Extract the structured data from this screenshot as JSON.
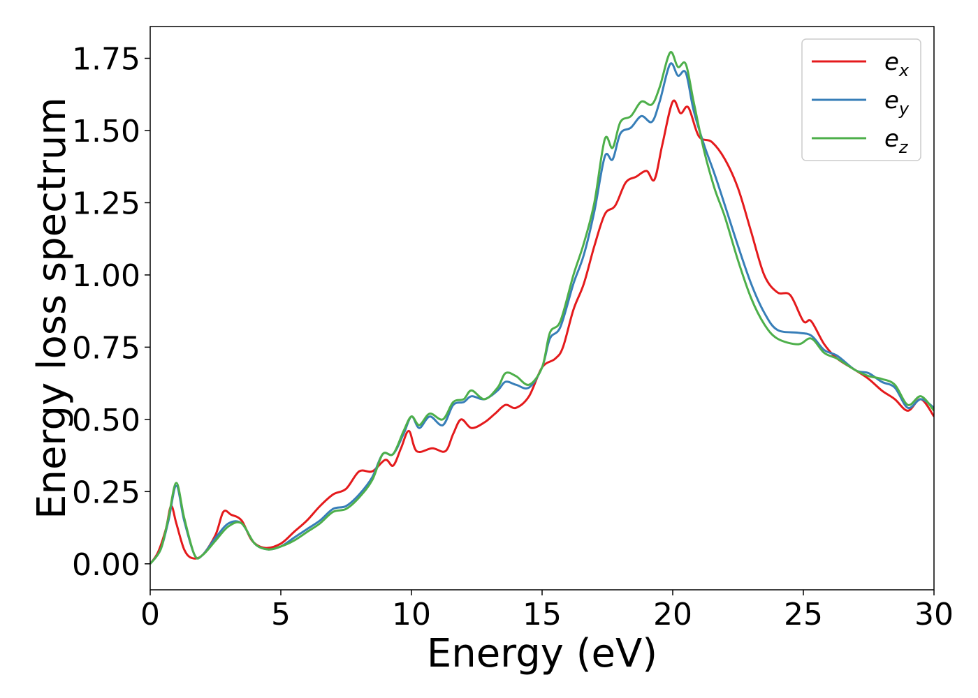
{
  "chart_data": {
    "type": "line",
    "xlabel": "Energy (eV)",
    "ylabel": "Energy loss spectrum",
    "xlim": [
      0,
      30
    ],
    "ylim": [
      -0.09,
      1.86
    ],
    "xticks": [
      0,
      5,
      10,
      15,
      20,
      25,
      30
    ],
    "xtick_labels": [
      "0",
      "5",
      "10",
      "15",
      "20",
      "25",
      "30"
    ],
    "yticks": [
      0,
      0.25,
      0.5,
      0.75,
      1.0,
      1.25,
      1.5,
      1.75
    ],
    "ytick_labels": [
      "0.00",
      "0.25",
      "0.50",
      "0.75",
      "1.00",
      "1.25",
      "1.50",
      "1.75"
    ],
    "grid": false,
    "legend_position": "top-right",
    "series": [
      {
        "name": "e_x",
        "base": "e",
        "sub": "x",
        "color": "#e41a1c",
        "points": [
          [
            0,
            0
          ],
          [
            0.3,
            0.04
          ],
          [
            0.6,
            0.12
          ],
          [
            0.8,
            0.2
          ],
          [
            1.0,
            0.14
          ],
          [
            1.3,
            0.05
          ],
          [
            1.6,
            0.02
          ],
          [
            2.0,
            0.03
          ],
          [
            2.5,
            0.1
          ],
          [
            2.8,
            0.18
          ],
          [
            3.1,
            0.17
          ],
          [
            3.5,
            0.15
          ],
          [
            3.9,
            0.08
          ],
          [
            4.4,
            0.055
          ],
          [
            5.0,
            0.07
          ],
          [
            5.5,
            0.11
          ],
          [
            6.0,
            0.15
          ],
          [
            6.5,
            0.2
          ],
          [
            7.0,
            0.24
          ],
          [
            7.5,
            0.26
          ],
          [
            8.0,
            0.32
          ],
          [
            8.5,
            0.32
          ],
          [
            9.0,
            0.36
          ],
          [
            9.3,
            0.34
          ],
          [
            9.6,
            0.4
          ],
          [
            9.9,
            0.46
          ],
          [
            10.2,
            0.39
          ],
          [
            10.8,
            0.4
          ],
          [
            11.3,
            0.39
          ],
          [
            11.6,
            0.45
          ],
          [
            11.9,
            0.5
          ],
          [
            12.3,
            0.47
          ],
          [
            12.8,
            0.49
          ],
          [
            13.2,
            0.52
          ],
          [
            13.6,
            0.55
          ],
          [
            14.0,
            0.54
          ],
          [
            14.5,
            0.58
          ],
          [
            15.0,
            0.68
          ],
          [
            15.5,
            0.71
          ],
          [
            15.8,
            0.75
          ],
          [
            16.2,
            0.88
          ],
          [
            16.6,
            0.97
          ],
          [
            17.0,
            1.1
          ],
          [
            17.4,
            1.21
          ],
          [
            17.8,
            1.24
          ],
          [
            18.2,
            1.32
          ],
          [
            18.6,
            1.34
          ],
          [
            19.0,
            1.36
          ],
          [
            19.3,
            1.33
          ],
          [
            19.6,
            1.45
          ],
          [
            20.0,
            1.6
          ],
          [
            20.3,
            1.56
          ],
          [
            20.6,
            1.58
          ],
          [
            21.0,
            1.48
          ],
          [
            21.5,
            1.46
          ],
          [
            22.0,
            1.4
          ],
          [
            22.5,
            1.3
          ],
          [
            23.0,
            1.15
          ],
          [
            23.5,
            1.0
          ],
          [
            24.0,
            0.94
          ],
          [
            24.5,
            0.93
          ],
          [
            25.0,
            0.84
          ],
          [
            25.3,
            0.84
          ],
          [
            25.8,
            0.76
          ],
          [
            26.3,
            0.71
          ],
          [
            27.0,
            0.67
          ],
          [
            27.5,
            0.64
          ],
          [
            28.0,
            0.6
          ],
          [
            28.5,
            0.57
          ],
          [
            29.0,
            0.53
          ],
          [
            29.5,
            0.57
          ],
          [
            30.0,
            0.51
          ]
        ]
      },
      {
        "name": "e_y",
        "base": "e",
        "sub": "y",
        "color": "#377eb8",
        "points": [
          [
            0,
            0
          ],
          [
            0.4,
            0.05
          ],
          [
            0.7,
            0.15
          ],
          [
            1.0,
            0.27
          ],
          [
            1.3,
            0.15
          ],
          [
            1.7,
            0.03
          ],
          [
            2.0,
            0.03
          ],
          [
            2.5,
            0.09
          ],
          [
            3.0,
            0.14
          ],
          [
            3.5,
            0.14
          ],
          [
            4.0,
            0.07
          ],
          [
            4.5,
            0.05
          ],
          [
            5.0,
            0.06
          ],
          [
            5.5,
            0.09
          ],
          [
            6.0,
            0.12
          ],
          [
            6.5,
            0.15
          ],
          [
            7.0,
            0.19
          ],
          [
            7.5,
            0.2
          ],
          [
            8.0,
            0.24
          ],
          [
            8.5,
            0.3
          ],
          [
            8.9,
            0.38
          ],
          [
            9.3,
            0.38
          ],
          [
            9.7,
            0.45
          ],
          [
            10.0,
            0.51
          ],
          [
            10.3,
            0.47
          ],
          [
            10.7,
            0.51
          ],
          [
            11.2,
            0.48
          ],
          [
            11.6,
            0.55
          ],
          [
            12.0,
            0.56
          ],
          [
            12.3,
            0.58
          ],
          [
            12.8,
            0.57
          ],
          [
            13.3,
            0.6
          ],
          [
            13.6,
            0.63
          ],
          [
            14.0,
            0.62
          ],
          [
            14.5,
            0.61
          ],
          [
            15.0,
            0.68
          ],
          [
            15.3,
            0.78
          ],
          [
            15.7,
            0.82
          ],
          [
            16.2,
            0.97
          ],
          [
            16.6,
            1.07
          ],
          [
            17.0,
            1.22
          ],
          [
            17.4,
            1.41
          ],
          [
            17.7,
            1.4
          ],
          [
            18.0,
            1.49
          ],
          [
            18.4,
            1.51
          ],
          [
            18.8,
            1.55
          ],
          [
            19.2,
            1.53
          ],
          [
            19.5,
            1.6
          ],
          [
            19.9,
            1.73
          ],
          [
            20.2,
            1.69
          ],
          [
            20.5,
            1.7
          ],
          [
            20.8,
            1.57
          ],
          [
            21.2,
            1.45
          ],
          [
            21.6,
            1.35
          ],
          [
            22.0,
            1.24
          ],
          [
            22.5,
            1.1
          ],
          [
            23.0,
            0.97
          ],
          [
            23.5,
            0.87
          ],
          [
            24.0,
            0.81
          ],
          [
            24.8,
            0.8
          ],
          [
            25.3,
            0.79
          ],
          [
            25.8,
            0.74
          ],
          [
            26.3,
            0.72
          ],
          [
            27.0,
            0.67
          ],
          [
            27.5,
            0.66
          ],
          [
            28.0,
            0.63
          ],
          [
            28.5,
            0.61
          ],
          [
            29.0,
            0.54
          ],
          [
            29.5,
            0.57
          ],
          [
            30.0,
            0.54
          ]
        ]
      },
      {
        "name": "e_z",
        "base": "e",
        "sub": "z",
        "color": "#4daf4a",
        "points": [
          [
            0,
            0
          ],
          [
            0.4,
            0.05
          ],
          [
            0.7,
            0.16
          ],
          [
            1.0,
            0.28
          ],
          [
            1.3,
            0.16
          ],
          [
            1.7,
            0.03
          ],
          [
            2.0,
            0.03
          ],
          [
            2.5,
            0.08
          ],
          [
            3.0,
            0.13
          ],
          [
            3.5,
            0.14
          ],
          [
            4.0,
            0.07
          ],
          [
            4.5,
            0.05
          ],
          [
            5.0,
            0.06
          ],
          [
            5.5,
            0.08
          ],
          [
            6.0,
            0.11
          ],
          [
            6.5,
            0.14
          ],
          [
            7.0,
            0.18
          ],
          [
            7.5,
            0.19
          ],
          [
            8.0,
            0.23
          ],
          [
            8.5,
            0.29
          ],
          [
            8.9,
            0.38
          ],
          [
            9.3,
            0.38
          ],
          [
            9.7,
            0.46
          ],
          [
            10.0,
            0.51
          ],
          [
            10.3,
            0.48
          ],
          [
            10.7,
            0.52
          ],
          [
            11.2,
            0.5
          ],
          [
            11.6,
            0.56
          ],
          [
            12.0,
            0.57
          ],
          [
            12.3,
            0.6
          ],
          [
            12.8,
            0.57
          ],
          [
            13.3,
            0.61
          ],
          [
            13.6,
            0.66
          ],
          [
            14.0,
            0.65
          ],
          [
            14.5,
            0.62
          ],
          [
            15.0,
            0.68
          ],
          [
            15.3,
            0.8
          ],
          [
            15.7,
            0.84
          ],
          [
            16.2,
            1.0
          ],
          [
            16.6,
            1.11
          ],
          [
            17.0,
            1.25
          ],
          [
            17.4,
            1.47
          ],
          [
            17.7,
            1.44
          ],
          [
            18.0,
            1.53
          ],
          [
            18.4,
            1.55
          ],
          [
            18.8,
            1.6
          ],
          [
            19.2,
            1.59
          ],
          [
            19.5,
            1.65
          ],
          [
            19.9,
            1.77
          ],
          [
            20.2,
            1.72
          ],
          [
            20.5,
            1.73
          ],
          [
            20.8,
            1.6
          ],
          [
            21.2,
            1.43
          ],
          [
            21.6,
            1.3
          ],
          [
            22.0,
            1.2
          ],
          [
            22.5,
            1.05
          ],
          [
            23.0,
            0.92
          ],
          [
            23.5,
            0.83
          ],
          [
            24.0,
            0.78
          ],
          [
            24.8,
            0.76
          ],
          [
            25.3,
            0.78
          ],
          [
            25.8,
            0.73
          ],
          [
            26.3,
            0.71
          ],
          [
            27.0,
            0.67
          ],
          [
            27.5,
            0.65
          ],
          [
            28.0,
            0.64
          ],
          [
            28.5,
            0.62
          ],
          [
            29.0,
            0.55
          ],
          [
            29.5,
            0.58
          ],
          [
            30.0,
            0.53
          ]
        ]
      }
    ]
  }
}
